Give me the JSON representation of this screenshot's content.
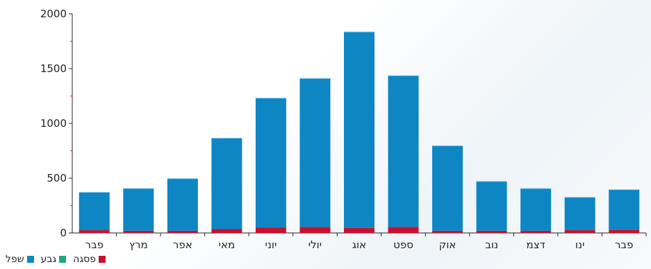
{
  "chart_data": {
    "type": "bar",
    "stacked": true,
    "categories": [
      "פבר",
      "מרץ",
      "אפר",
      "מאי",
      "יוני",
      "יולי",
      "אוג",
      "ספט",
      "אוק",
      "נוב",
      "דצמ",
      "ינו",
      "פבר"
    ],
    "series": [
      {
        "name": "שפל",
        "color": "#0e86c4",
        "values": [
          345,
          385,
          475,
          830,
          1180,
          1355,
          1790,
          1380,
          775,
          450,
          385,
          300,
          365
        ]
      },
      {
        "name": "גבע",
        "color": "#1fa67a",
        "values": [
          0,
          0,
          0,
          0,
          0,
          0,
          0,
          0,
          0,
          0,
          0,
          0,
          0
        ]
      },
      {
        "name": "פסגה",
        "color": "#c8102e",
        "values": [
          25,
          20,
          20,
          35,
          50,
          55,
          45,
          55,
          20,
          20,
          20,
          25,
          30
        ]
      }
    ],
    "ylim": [
      0,
      2000
    ],
    "yticks": [
      0,
      500,
      1000,
      1500,
      2000
    ],
    "minor_yticks": [
      250,
      750,
      1250,
      1750
    ],
    "legend_position": "bottom-left",
    "title": "",
    "xlabel": "",
    "ylabel": ""
  }
}
